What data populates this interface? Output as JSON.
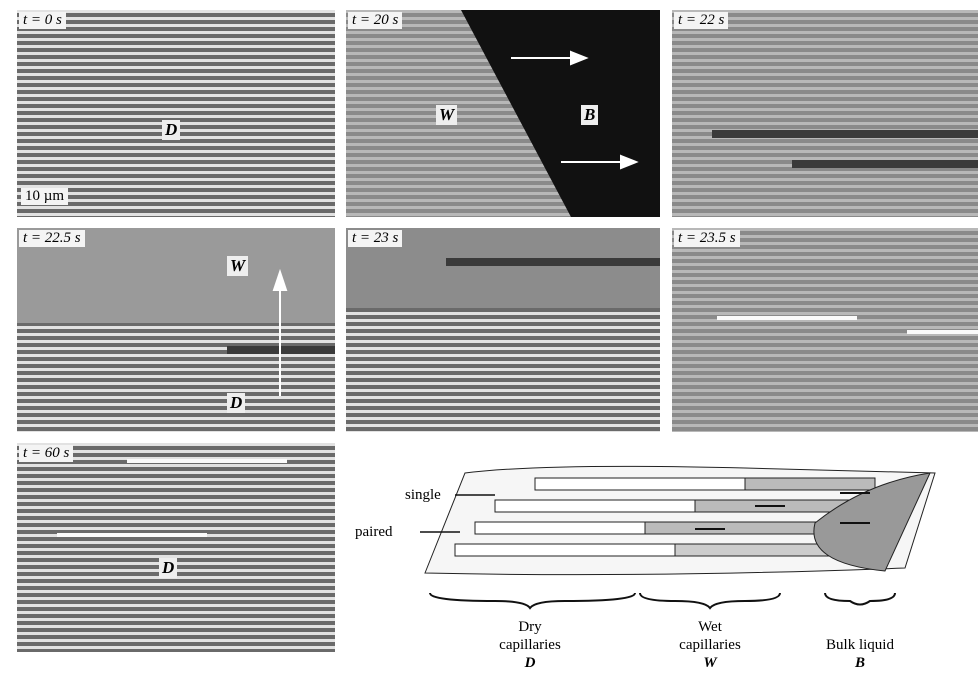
{
  "panels": [
    {
      "time": "t = 0 s",
      "labels": [
        "D"
      ],
      "scale_bar": "10 µm"
    },
    {
      "time": "t = 20 s",
      "labels": [
        "W",
        "B"
      ]
    },
    {
      "time": "t = 22 s"
    },
    {
      "time": "t = 22.5 s",
      "labels": [
        "W",
        "D"
      ]
    },
    {
      "time": "t = 23 s"
    },
    {
      "time": "t = 23.5 s"
    },
    {
      "time": "t = 60 s",
      "labels": [
        "D"
      ]
    }
  ],
  "schematic": {
    "annotations": [
      "single",
      "paired"
    ],
    "regions": [
      {
        "lines": [
          "Dry",
          "capillaries"
        ],
        "symbol": "D"
      },
      {
        "lines": [
          "Wet",
          "capillaries"
        ],
        "symbol": "W"
      },
      {
        "lines": [
          "Bulk liquid"
        ],
        "symbol": "B"
      }
    ]
  }
}
